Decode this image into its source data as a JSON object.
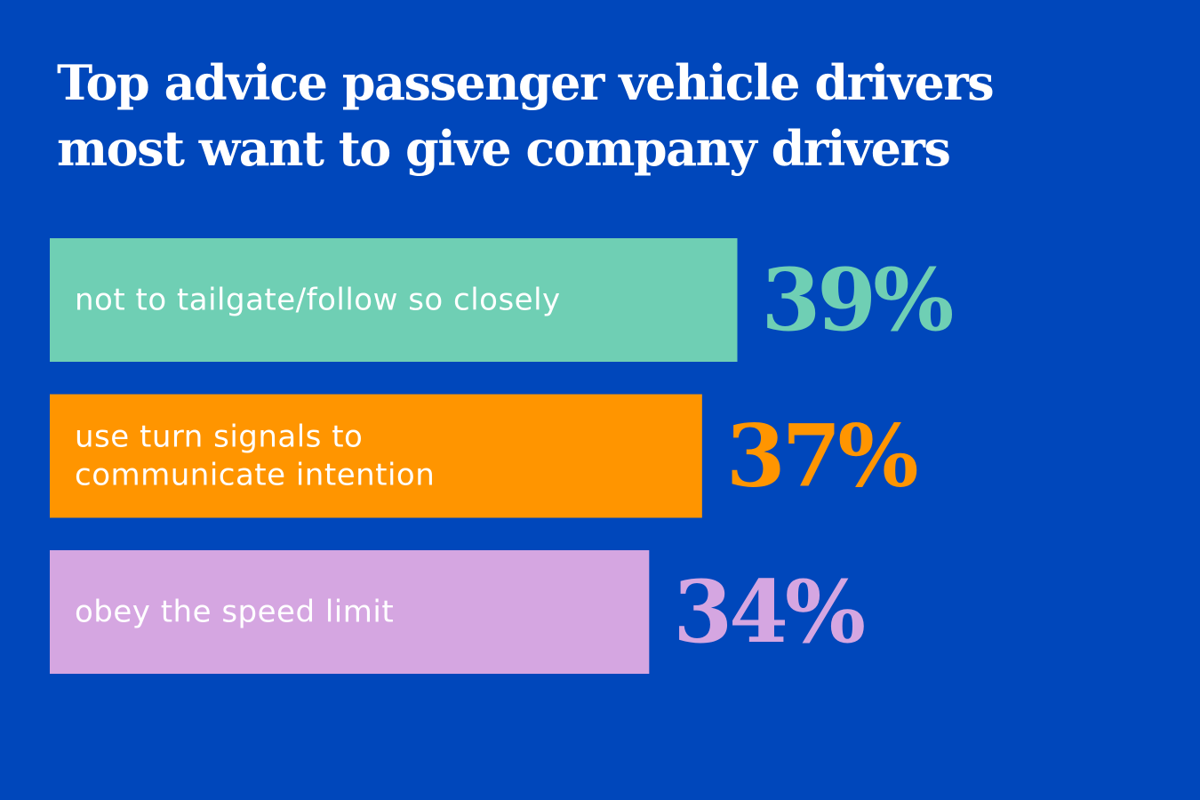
{
  "chart_data": {
    "type": "bar",
    "orientation": "horizontal",
    "title": "Top advice passenger vehicle drivers most want to give company drivers",
    "categories": [
      [
        "not to tailgate/follow so closely"
      ],
      [
        "use turn signals to",
        "communicate intention"
      ],
      [
        "obey the speed limit"
      ]
    ],
    "values": [
      39,
      37,
      34
    ],
    "value_labels": [
      "39%",
      "37%",
      "34%"
    ],
    "unit": "%",
    "colors": [
      "#6FCFB4",
      "#FF9500",
      "#D5A6E1"
    ],
    "background": "#0047BB",
    "grid": false,
    "legend": "none"
  }
}
